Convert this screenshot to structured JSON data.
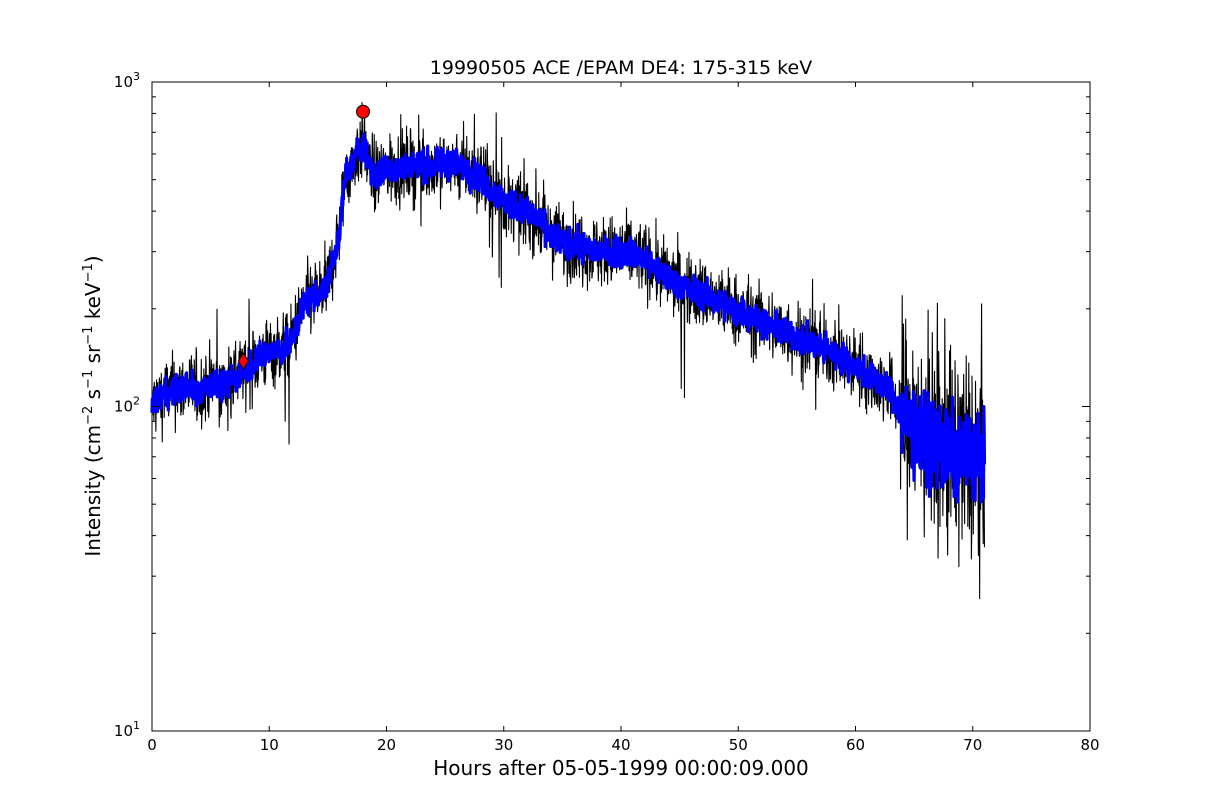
{
  "chart_data": {
    "type": "line",
    "title": "19990505 ACE /EPAM DE4: 175-315 keV",
    "xlabel": "Hours after 05-05-1999 00:00:09.000",
    "ylabel": {
      "prefix": "Intensity (cm",
      "sup1": "−2",
      "part2": " s",
      "sup2": "−1",
      "part3": " sr",
      "sup3": "−1",
      "part4": " keV",
      "sup4": "−1",
      "suffix": ")"
    },
    "xlim": [
      0,
      80
    ],
    "ylim": [
      10,
      1000
    ],
    "yscale": "log",
    "grid": false,
    "x_ticks": [
      "0",
      "10",
      "20",
      "30",
      "40",
      "50",
      "60",
      "70",
      "80"
    ],
    "y_ticks": [
      {
        "base": "10",
        "exp": "1",
        "value": 10
      },
      {
        "base": "10",
        "exp": "2",
        "value": 100
      },
      {
        "base": "10",
        "exp": "3",
        "value": 1000
      }
    ],
    "series": [
      {
        "role": "raw",
        "color": "#000000",
        "x": [
          0,
          1,
          2,
          3,
          4,
          5,
          6,
          7,
          8,
          9,
          10,
          11,
          11.8,
          12.5,
          13,
          14,
          14.8,
          15.5,
          16,
          16.5,
          17,
          17.5,
          18,
          18.5,
          19,
          19.5,
          20,
          21,
          22,
          23,
          24,
          25,
          26,
          27,
          28,
          29,
          30,
          31,
          32,
          33,
          34,
          35,
          36,
          37,
          38,
          39,
          40,
          41,
          42,
          43,
          44,
          45,
          46,
          47,
          48,
          49,
          50,
          51,
          52,
          53,
          54,
          55,
          56,
          57,
          58,
          59,
          60,
          61,
          62,
          63,
          64,
          65,
          66,
          67,
          68,
          69,
          70,
          71
        ],
        "y": [
          100,
          110,
          112,
          115,
          112,
          118,
          115,
          122,
          132,
          140,
          148,
          150,
          155,
          185,
          210,
          220,
          230,
          285,
          350,
          520,
          540,
          610,
          650,
          560,
          510,
          520,
          535,
          545,
          550,
          555,
          548,
          562,
          560,
          535,
          505,
          465,
          430,
          415,
          395,
          375,
          340,
          322,
          315,
          308,
          302,
          298,
          300,
          298,
          285,
          265,
          250,
          238,
          228,
          220,
          212,
          205,
          198,
          190,
          183,
          176,
          170,
          164,
          158,
          152,
          147,
          140,
          133,
          125,
          118,
          110,
          95,
          85,
          80,
          75,
          72,
          71,
          70,
          72
        ]
      },
      {
        "role": "smoothed",
        "color": "#0000ff",
        "x": [
          0,
          1,
          2,
          3,
          4,
          5,
          6,
          7,
          8,
          9,
          10,
          11,
          11.8,
          12.5,
          13,
          14,
          14.8,
          15.5,
          16,
          16.5,
          17,
          17.5,
          18,
          18.5,
          19,
          19.5,
          20,
          21,
          22,
          23,
          24,
          25,
          26,
          27,
          28,
          29,
          30,
          31,
          32,
          33,
          34,
          35,
          36,
          37,
          38,
          39,
          40,
          41,
          42,
          43,
          44,
          45,
          46,
          47,
          48,
          49,
          50,
          51,
          52,
          53,
          54,
          55,
          56,
          57,
          58,
          59,
          60,
          61,
          62,
          63,
          64,
          65,
          66,
          67,
          68,
          69,
          70,
          71
        ],
        "y": [
          100,
          110,
          112,
          115,
          112,
          118,
          115,
          122,
          132,
          140,
          148,
          150,
          155,
          185,
          210,
          220,
          230,
          285,
          350,
          520,
          540,
          610,
          650,
          560,
          510,
          520,
          535,
          545,
          550,
          555,
          548,
          562,
          560,
          535,
          505,
          465,
          430,
          415,
          395,
          375,
          340,
          322,
          315,
          308,
          302,
          298,
          300,
          298,
          285,
          265,
          250,
          238,
          228,
          220,
          212,
          205,
          198,
          190,
          183,
          176,
          170,
          164,
          158,
          152,
          147,
          140,
          133,
          125,
          118,
          110,
          95,
          85,
          80,
          75,
          72,
          71,
          70,
          72
        ]
      }
    ],
    "markers": [
      {
        "shape": "circle",
        "x": 18,
        "y": 810,
        "color": "#ff0000"
      },
      {
        "shape": "diamond",
        "x": 7.8,
        "y": 138,
        "color": "#ff0000"
      }
    ]
  }
}
